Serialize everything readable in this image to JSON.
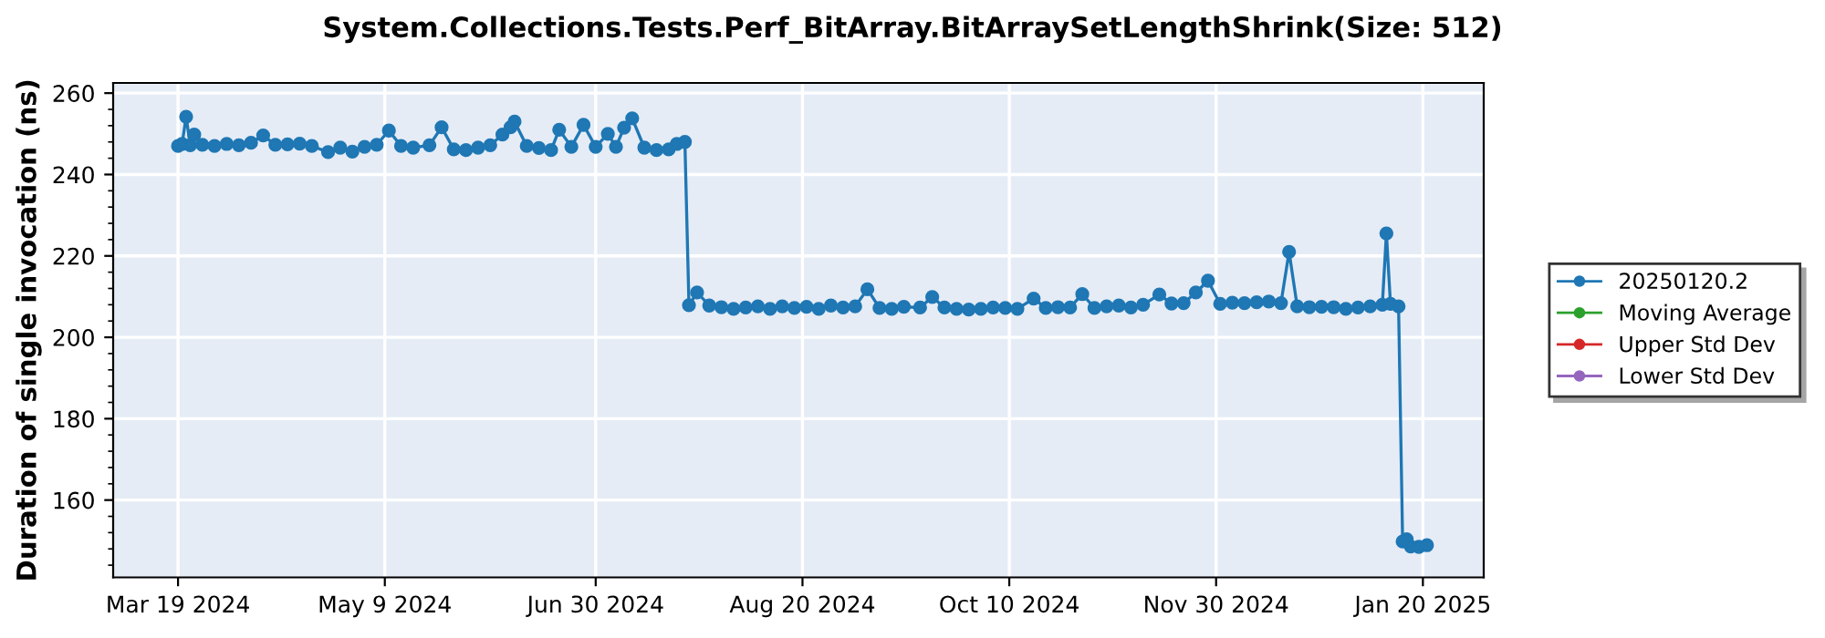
{
  "chart_data": {
    "type": "line",
    "title": "System.Collections.Tests.Perf_BitArray.BitArraySetLengthShrink(Size: 512)",
    "ylabel": "Duration of single invocation (ns)",
    "xlim": [
      "2024-03-03",
      "2025-02-04"
    ],
    "xticks": [
      {
        "value": "2024-03-19",
        "label": "Mar 19 2024"
      },
      {
        "value": "2024-05-09",
        "label": "May 9 2024"
      },
      {
        "value": "2024-06-30",
        "label": "Jun 30 2024"
      },
      {
        "value": "2024-08-20",
        "label": "Aug 20 2024"
      },
      {
        "value": "2024-10-10",
        "label": "Oct 10 2024"
      },
      {
        "value": "2024-11-30",
        "label": "Nov 30 2024"
      },
      {
        "value": "2025-01-20",
        "label": "Jan 20 2025"
      }
    ],
    "ylim": [
      141,
      262.5
    ],
    "yticks": [
      160,
      180,
      200,
      220,
      240,
      260
    ],
    "grid": true,
    "legend": "right",
    "marker": "circle",
    "line_style": "solid",
    "series": [
      {
        "name": "20250120.2",
        "color": "#1f77b4",
        "x": [
          "2024-03-19",
          "2024-03-20",
          "2024-03-21",
          "2024-03-22",
          "2024-03-23",
          "2024-03-25",
          "2024-03-28",
          "2024-03-31",
          "2024-04-03",
          "2024-04-06",
          "2024-04-09",
          "2024-04-12",
          "2024-04-15",
          "2024-04-18",
          "2024-04-21",
          "2024-04-25",
          "2024-04-28",
          "2024-05-01",
          "2024-05-04",
          "2024-05-07",
          "2024-05-10",
          "2024-05-13",
          "2024-05-16",
          "2024-05-20",
          "2024-05-23",
          "2024-05-26",
          "2024-05-29",
          "2024-06-01",
          "2024-06-04",
          "2024-06-07",
          "2024-06-09",
          "2024-06-10",
          "2024-06-13",
          "2024-06-16",
          "2024-06-19",
          "2024-06-21",
          "2024-06-24",
          "2024-06-27",
          "2024-06-30",
          "2024-07-03",
          "2024-07-05",
          "2024-07-07",
          "2024-07-09",
          "2024-07-12",
          "2024-07-15",
          "2024-07-18",
          "2024-07-20",
          "2024-07-22",
          "2024-07-23",
          "2024-07-25",
          "2024-07-28",
          "2024-07-31",
          "2024-08-03",
          "2024-08-06",
          "2024-08-09",
          "2024-08-12",
          "2024-08-15",
          "2024-08-18",
          "2024-08-21",
          "2024-08-24",
          "2024-08-27",
          "2024-08-30",
          "2024-09-02",
          "2024-09-05",
          "2024-09-08",
          "2024-09-11",
          "2024-09-14",
          "2024-09-18",
          "2024-09-21",
          "2024-09-24",
          "2024-09-27",
          "2024-09-30",
          "2024-10-03",
          "2024-10-06",
          "2024-10-09",
          "2024-10-12",
          "2024-10-16",
          "2024-10-19",
          "2024-10-22",
          "2024-10-25",
          "2024-10-28",
          "2024-10-31",
          "2024-11-03",
          "2024-11-06",
          "2024-11-09",
          "2024-11-12",
          "2024-11-16",
          "2024-11-19",
          "2024-11-22",
          "2024-11-25",
          "2024-11-28",
          "2024-12-01",
          "2024-12-04",
          "2024-12-07",
          "2024-12-10",
          "2024-12-13",
          "2024-12-16",
          "2024-12-18",
          "2024-12-20",
          "2024-12-23",
          "2024-12-26",
          "2024-12-29",
          "2025-01-01",
          "2025-01-04",
          "2025-01-07",
          "2025-01-10",
          "2025-01-11",
          "2025-01-12",
          "2025-01-14",
          "2025-01-15",
          "2025-01-16",
          "2025-01-17",
          "2025-01-19",
          "2025-01-21"
        ],
        "values": [
          247.0,
          247.5,
          254.2,
          247.2,
          249.8,
          247.3,
          247.0,
          247.5,
          247.2,
          247.8,
          249.6,
          247.3,
          247.4,
          247.6,
          247.0,
          245.5,
          246.6,
          245.6,
          246.8,
          247.3,
          250.8,
          247.0,
          246.6,
          247.2,
          251.6,
          246.2,
          246.0,
          246.6,
          247.2,
          249.8,
          251.6,
          253.0,
          247.0,
          246.5,
          246.0,
          251.0,
          246.8,
          252.2,
          246.8,
          250.0,
          246.8,
          251.5,
          253.8,
          246.6,
          246.0,
          246.2,
          247.5,
          248.0,
          207.9,
          211.0,
          207.8,
          207.4,
          207.0,
          207.3,
          207.6,
          207.0,
          207.6,
          207.2,
          207.5,
          207.0,
          207.8,
          207.3,
          207.6,
          211.8,
          207.2,
          207.0,
          207.5,
          207.3,
          209.9,
          207.3,
          207.0,
          206.8,
          207.0,
          207.3,
          207.2,
          207.0,
          209.5,
          207.2,
          207.4,
          207.3,
          210.6,
          207.2,
          207.6,
          207.8,
          207.3,
          208.0,
          210.5,
          208.3,
          208.4,
          211.0,
          213.9,
          208.2,
          208.5,
          208.4,
          208.6,
          208.8,
          208.4,
          221.0,
          207.6,
          207.4,
          207.5,
          207.4,
          207.0,
          207.3,
          207.6,
          208.0,
          225.5,
          208.2,
          207.6,
          149.8,
          150.4,
          148.6,
          148.5,
          148.9
        ]
      },
      {
        "name": "Moving Average",
        "color": "#2ca02c"
      },
      {
        "name": "Upper Std Dev",
        "color": "#d62728"
      },
      {
        "name": "Lower Std Dev",
        "color": "#9467bd"
      }
    ]
  }
}
